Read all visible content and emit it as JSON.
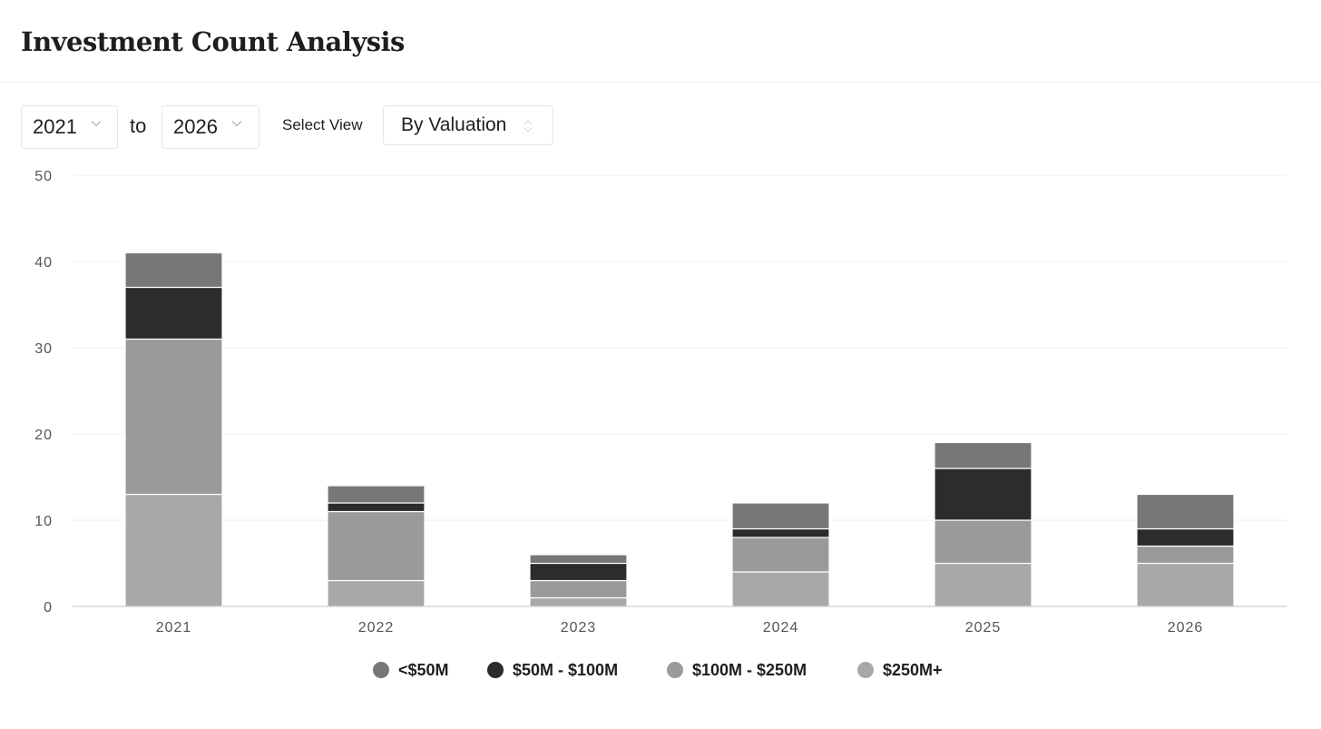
{
  "header": {
    "title": "Investment Count Analysis"
  },
  "controls": {
    "from_year": "2021",
    "to_label": "to",
    "to_year": "2026",
    "view_label": "Select View",
    "view_value": "By Valuation"
  },
  "colors": {
    "lt50": "#777777",
    "50to100": "#2c2c2c",
    "100to250": "#9a9a9a",
    "250plus": "#a8a8a8",
    "grid": "#efefef",
    "axis": "#cfcfcf",
    "tick": "#555555"
  },
  "chart_data": {
    "type": "bar",
    "stacked": true,
    "title": "Investment Count Analysis",
    "xlabel": "",
    "ylabel": "",
    "ylim": [
      0,
      50
    ],
    "yticks": [
      "0",
      "10",
      "20",
      "30",
      "40",
      "50"
    ],
    "categories": [
      "2021",
      "2022",
      "2023",
      "2024",
      "2025",
      "2026"
    ],
    "series": [
      {
        "name": "$250M+",
        "color": "#a8a8a8",
        "values": [
          13,
          3,
          1,
          4,
          5,
          5
        ]
      },
      {
        "name": "$100M - $250M",
        "color": "#9a9a9a",
        "values": [
          18,
          8,
          2,
          4,
          5,
          2
        ]
      },
      {
        "name": "$50M - $100M",
        "color": "#2c2c2c",
        "values": [
          6,
          1,
          2,
          1,
          6,
          2
        ]
      },
      {
        "name": "<$50M",
        "color": "#777777",
        "values": [
          4,
          2,
          1,
          3,
          3,
          4
        ]
      }
    ],
    "legend_order": [
      "<$50M",
      "$50M - $100M",
      "$100M - $250M",
      "$250M+"
    ],
    "legend_position": "bottom-center",
    "grid": true
  }
}
